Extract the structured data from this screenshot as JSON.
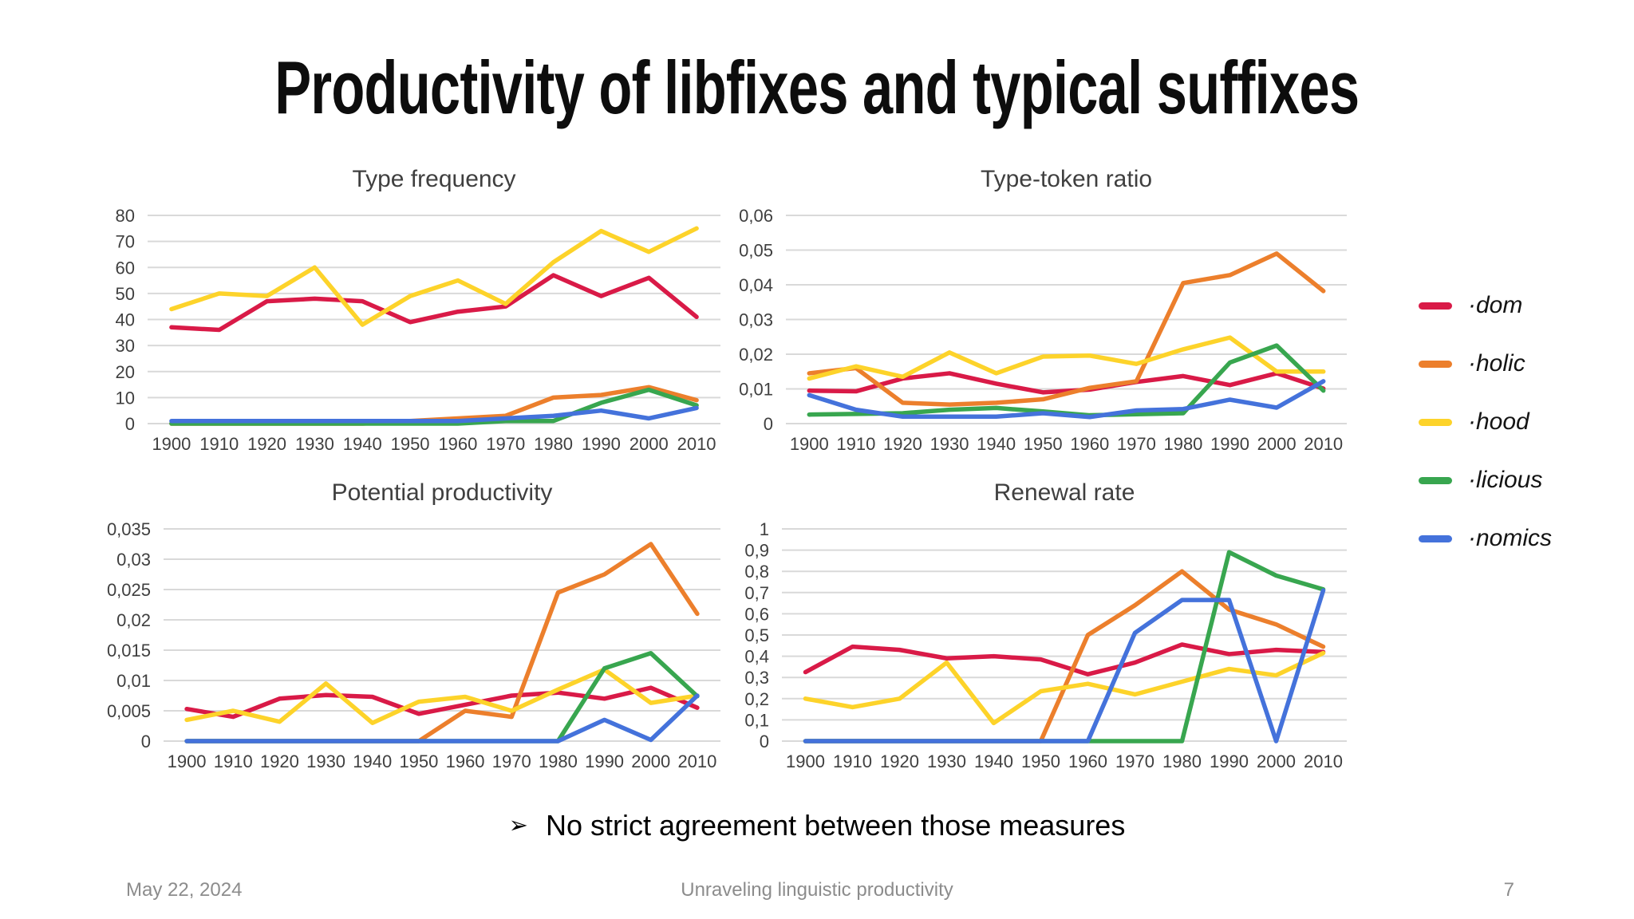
{
  "slide": {
    "title": "Productivity of libfixes and typical suffixes",
    "bullet": {
      "marker": "➢",
      "text": "No strict agreement between those measures"
    },
    "footer": {
      "date": "May 22, 2024",
      "center_text": "Unraveling linguistic productivity",
      "page_number": "7"
    }
  },
  "legend": {
    "position": "right",
    "items": [
      {
        "label": "·dom",
        "color": "#D91A47"
      },
      {
        "label": "·holic",
        "color": "#EC7F2C"
      },
      {
        "label": "·hood",
        "color": "#FDD32A"
      },
      {
        "label": "·licious",
        "color": "#38A64F"
      },
      {
        "label": "·nomics",
        "color": "#4472DB"
      }
    ]
  },
  "chart_data": [
    {
      "type": "line",
      "title": "Type frequency",
      "categories": [
        "1900",
        "1910",
        "1920",
        "1930",
        "1940",
        "1950",
        "1960",
        "1970",
        "1980",
        "1990",
        "2000",
        "2010"
      ],
      "xlabel": "",
      "ylabel": "",
      "ylim": [
        0,
        80
      ],
      "ytick_values": [
        0,
        10,
        20,
        30,
        40,
        50,
        60,
        70,
        80
      ],
      "ytick_labels": [
        "0",
        "10",
        "20",
        "30",
        "40",
        "50",
        "60",
        "70",
        "80"
      ],
      "grid": true,
      "legend_position": "shared-right",
      "series": [
        {
          "name": "·dom",
          "color": "#D91A47",
          "values": [
            37,
            36,
            47,
            48,
            47,
            39,
            43,
            45,
            57,
            49,
            56,
            41
          ]
        },
        {
          "name": "·holic",
          "color": "#EC7F2C",
          "values": [
            0,
            0,
            0,
            0,
            0,
            1,
            2,
            3,
            10,
            11,
            14,
            9
          ]
        },
        {
          "name": "·hood",
          "color": "#FDD32A",
          "values": [
            44,
            50,
            49,
            60,
            38,
            49,
            55,
            46,
            62,
            74,
            66,
            75
          ]
        },
        {
          "name": "·licious",
          "color": "#38A64F",
          "values": [
            0,
            0,
            0,
            0,
            0,
            0,
            0,
            1,
            1,
            8,
            13,
            7
          ]
        },
        {
          "name": "·nomics",
          "color": "#4472DB",
          "values": [
            1,
            1,
            1,
            1,
            1,
            1,
            1,
            2,
            3,
            5,
            2,
            6
          ]
        }
      ]
    },
    {
      "type": "line",
      "title": "Type-token ratio",
      "categories": [
        "1900",
        "1910",
        "1920",
        "1930",
        "1940",
        "1950",
        "1960",
        "1970",
        "1980",
        "1990",
        "2000",
        "2010"
      ],
      "xlabel": "",
      "ylabel": "",
      "ylim": [
        0,
        0.06
      ],
      "ytick_values": [
        0,
        0.01,
        0.02,
        0.03,
        0.04,
        0.05,
        0.06
      ],
      "ytick_labels": [
        "0",
        "0,01",
        "0,02",
        "0,03",
        "0,04",
        "0,05",
        "0,06"
      ],
      "grid": true,
      "legend_position": "shared-right",
      "series": [
        {
          "name": "·dom",
          "color": "#D91A47",
          "values": [
            0.0095,
            0.0093,
            0.013,
            0.0145,
            0.0115,
            0.009,
            0.0098,
            0.012,
            0.0137,
            0.0111,
            0.0145,
            0.0101
          ]
        },
        {
          "name": "·holic",
          "color": "#EC7F2C",
          "values": [
            0.0145,
            0.016,
            0.006,
            0.0055,
            0.006,
            0.007,
            0.0103,
            0.0122,
            0.0405,
            0.0428,
            0.049,
            0.0382
          ]
        },
        {
          "name": "·hood",
          "color": "#FDD32A",
          "values": [
            0.013,
            0.0165,
            0.0135,
            0.0205,
            0.0145,
            0.0193,
            0.0196,
            0.0172,
            0.0214,
            0.0248,
            0.015,
            0.015
          ]
        },
        {
          "name": "·licious",
          "color": "#38A64F",
          "values": [
            0.0026,
            0.0028,
            0.003,
            0.004,
            0.0045,
            0.0035,
            0.0024,
            0.0027,
            0.003,
            0.0176,
            0.0225,
            0.0095
          ]
        },
        {
          "name": "·nomics",
          "color": "#4472DB",
          "values": [
            0.0082,
            0.004,
            0.002,
            0.002,
            0.002,
            0.003,
            0.0019,
            0.0038,
            0.0042,
            0.0069,
            0.0046,
            0.0122
          ]
        }
      ]
    },
    {
      "type": "line",
      "title": "Potential productivity",
      "categories": [
        "1900",
        "1910",
        "1920",
        "1930",
        "1940",
        "1950",
        "1960",
        "1970",
        "1980",
        "1990",
        "2000",
        "2010"
      ],
      "xlabel": "",
      "ylabel": "",
      "ylim": [
        0,
        0.035
      ],
      "ytick_values": [
        0,
        0.005,
        0.01,
        0.015,
        0.02,
        0.025,
        0.03,
        0.035
      ],
      "ytick_labels": [
        "0",
        "0,005",
        "0,01",
        "0,015",
        "0,02",
        "0,025",
        "0,03",
        "0,035"
      ],
      "grid": true,
      "legend_position": "shared-right",
      "series": [
        {
          "name": "·dom",
          "color": "#D91A47",
          "values": [
            0.0053,
            0.004,
            0.007,
            0.0076,
            0.0073,
            0.0045,
            0.006,
            0.0075,
            0.008,
            0.007,
            0.0088,
            0.0055
          ]
        },
        {
          "name": "·holic",
          "color": "#EC7F2C",
          "values": [
            0,
            0,
            0,
            0,
            0,
            0,
            0.005,
            0.004,
            0.0245,
            0.0275,
            0.0325,
            0.021
          ]
        },
        {
          "name": "·hood",
          "color": "#FDD32A",
          "values": [
            0.0035,
            0.005,
            0.0032,
            0.0095,
            0.003,
            0.0065,
            0.0073,
            0.005,
            0.0085,
            0.0118,
            0.0063,
            0.0075
          ]
        },
        {
          "name": "·licious",
          "color": "#38A64F",
          "values": [
            0,
            0,
            0,
            0,
            0,
            0,
            0,
            0,
            0,
            0.012,
            0.0145,
            0.0074
          ]
        },
        {
          "name": "·nomics",
          "color": "#4472DB",
          "values": [
            0,
            0,
            0,
            0,
            0,
            0,
            0,
            0,
            0,
            0.0035,
            0.0002,
            0.0075
          ]
        }
      ]
    },
    {
      "type": "line",
      "title": "Renewal rate",
      "categories": [
        "1900",
        "1910",
        "1920",
        "1930",
        "1940",
        "1950",
        "1960",
        "1970",
        "1980",
        "1990",
        "2000",
        "2010"
      ],
      "xlabel": "",
      "ylabel": "",
      "ylim": [
        0,
        1
      ],
      "ytick_values": [
        0,
        0.1,
        0.2,
        0.3,
        0.4,
        0.5,
        0.6,
        0.7,
        0.8,
        0.9,
        1
      ],
      "ytick_labels": [
        "0",
        "0,1",
        "0,2",
        "0,3",
        "0,4",
        "0,5",
        "0,6",
        "0,7",
        "0,8",
        "0,9",
        "1"
      ],
      "grid": true,
      "legend_position": "shared-right",
      "series": [
        {
          "name": "·dom",
          "color": "#D91A47",
          "values": [
            0.325,
            0.445,
            0.43,
            0.39,
            0.4,
            0.385,
            0.315,
            0.37,
            0.455,
            0.41,
            0.43,
            0.42
          ]
        },
        {
          "name": "·holic",
          "color": "#EC7F2C",
          "values": [
            0,
            0,
            0,
            0,
            0,
            0,
            0.5,
            0.64,
            0.8,
            0.62,
            0.55,
            0.445
          ]
        },
        {
          "name": "·hood",
          "color": "#FDD32A",
          "values": [
            0.2,
            0.16,
            0.2,
            0.37,
            0.085,
            0.235,
            0.27,
            0.22,
            0.28,
            0.34,
            0.31,
            0.415
          ]
        },
        {
          "name": "·licious",
          "color": "#38A64F",
          "values": [
            0,
            0,
            0,
            0,
            0,
            0,
            0,
            0,
            0,
            0.89,
            0.78,
            0.715
          ]
        },
        {
          "name": "·nomics",
          "color": "#4472DB",
          "values": [
            0,
            0,
            0,
            0,
            0,
            0,
            0,
            0.51,
            0.665,
            0.665,
            0,
            0.71
          ]
        }
      ]
    }
  ]
}
